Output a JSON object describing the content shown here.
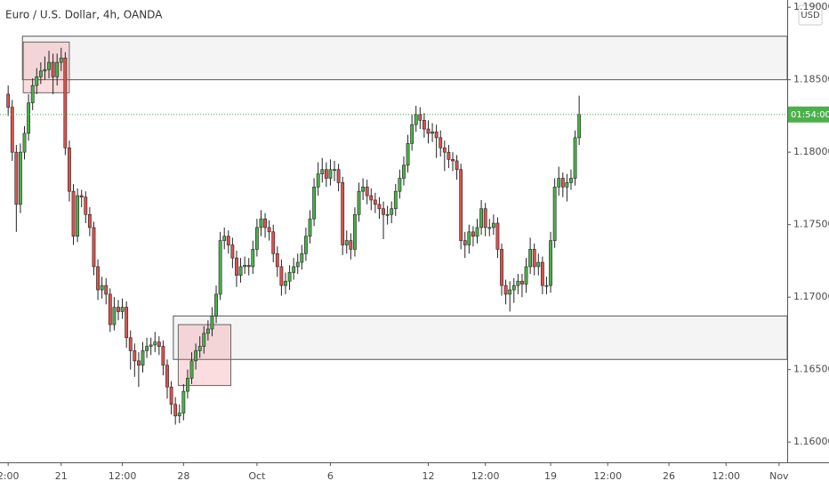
{
  "chart_data": {
    "type": "candlestick",
    "title": "Euro / U.S. Dollar, 4h, OANDA",
    "currency": "USD",
    "countdown": "01:54:00",
    "up_color": "#4cb04c",
    "down_color": "#d9534f",
    "xlim": [
      -2,
      191
    ],
    "ylim": [
      1.1586,
      1.1905
    ],
    "yticks": [
      {
        "value": 1.16,
        "label": "1.16000"
      },
      {
        "value": 1.165,
        "label": "1.16500"
      },
      {
        "value": 1.17,
        "label": "1.17000"
      },
      {
        "value": 1.175,
        "label": "1.17500"
      },
      {
        "value": 1.18,
        "label": "1.18000"
      },
      {
        "value": 1.185,
        "label": "1.18500"
      },
      {
        "value": 1.19,
        "label": "1.19000"
      }
    ],
    "xticks": [
      {
        "value": 0,
        "label": "2:00"
      },
      {
        "value": 13,
        "label": "21"
      },
      {
        "value": 28,
        "label": "12:00"
      },
      {
        "value": 43,
        "label": "28"
      },
      {
        "value": 61,
        "label": "Oct"
      },
      {
        "value": 79,
        "label": "6"
      },
      {
        "value": 103,
        "label": "12"
      },
      {
        "value": 117,
        "label": "12:00"
      },
      {
        "value": 133,
        "label": "19"
      },
      {
        "value": 147,
        "label": "12:00"
      },
      {
        "value": 162,
        "label": "26"
      },
      {
        "value": 176,
        "label": "12:00"
      },
      {
        "value": 189,
        "label": "Nov"
      }
    ],
    "zones": [
      {
        "x": [
          3.5,
          191
        ],
        "y": [
          1.185,
          1.188
        ]
      },
      {
        "x": [
          40.5,
          191
        ],
        "y": [
          1.1657,
          1.1687
        ]
      }
    ],
    "boxes": [
      {
        "x": [
          3.7,
          15
        ],
        "y": [
          1.1841,
          1.1876
        ]
      },
      {
        "x": [
          41.7,
          54.6
        ],
        "y": [
          1.1639,
          1.1681
        ]
      }
    ],
    "open": [
      1.184,
      1.1831,
      1.18,
      1.1764,
      1.18,
      1.1813,
      1.1834,
      1.1846,
      1.1852,
      1.1856,
      1.1857,
      1.1862,
      1.1852,
      1.1862,
      1.1865,
      1.1803,
      1.1773,
      1.1742,
      1.177,
      1.1769,
      1.1757,
      1.1748,
      1.1721,
      1.1705,
      1.1708,
      1.1702,
      1.1681,
      1.1693,
      1.169,
      1.1693,
      1.1672,
      1.1663,
      1.1656,
      1.1653,
      1.1663,
      1.1666,
      1.1667,
      1.1669,
      1.1666,
      1.1653,
      1.1638,
      1.1626,
      1.1618,
      1.162,
      1.1635,
      1.1644,
      1.1656,
      1.1663,
      1.1666,
      1.1675,
      1.1678,
      1.1687,
      1.1702,
      1.1739,
      1.1742,
      1.1736,
      1.1727,
      1.1715,
      1.1721,
      1.1722,
      1.1721,
      1.1733,
      1.1748,
      1.1754,
      1.1748,
      1.1745,
      1.173,
      1.1721,
      1.1708,
      1.1711,
      1.1717,
      1.1721,
      1.1724,
      1.173,
      1.1742,
      1.1754,
      1.1776,
      1.1785,
      1.1788,
      1.1782,
      1.1788,
      1.1788,
      1.1779,
      1.1736,
      1.1739,
      1.1733,
      1.1757,
      1.1773,
      1.1776,
      1.177,
      1.1767,
      1.1764,
      1.1761,
      1.1757,
      1.1757,
      1.1761,
      1.1773,
      1.1782,
      1.1791,
      1.1806,
      1.1819,
      1.1826,
      1.1822,
      1.1816,
      1.1813,
      1.1814,
      1.181,
      1.1803,
      1.18,
      1.1795,
      1.1794,
      1.1788,
      1.1739,
      1.1736,
      1.1745,
      1.1742,
      1.1748,
      1.1761,
      1.1748,
      1.1748,
      1.1751,
      1.1733,
      1.1708,
      1.1702,
      1.1705,
      1.1708,
      1.1711,
      1.1709,
      1.1721,
      1.1733,
      1.1721,
      1.1724,
      1.1708,
      1.1708,
      1.1739,
      1.1776,
      1.1782,
      1.1776,
      1.1779,
      1.1782,
      1.181
    ],
    "high": [
      1.1846,
      1.1836,
      1.1805,
      1.1806,
      1.1818,
      1.184,
      1.1851,
      1.1858,
      1.1862,
      1.1866,
      1.187,
      1.1868,
      1.1868,
      1.1872,
      1.1869,
      1.1808,
      1.1778,
      1.1775,
      1.1774,
      1.1773,
      1.1762,
      1.1752,
      1.1726,
      1.1714,
      1.1713,
      1.1706,
      1.17,
      1.1698,
      1.1699,
      1.1697,
      1.1677,
      1.1668,
      1.1662,
      1.1669,
      1.1672,
      1.1672,
      1.1676,
      1.1673,
      1.167,
      1.1657,
      1.1642,
      1.1631,
      1.1626,
      1.164,
      1.165,
      1.1662,
      1.1668,
      1.1673,
      1.168,
      1.1684,
      1.1693,
      1.1708,
      1.1745,
      1.1748,
      1.1746,
      1.1741,
      1.1732,
      1.1727,
      1.1728,
      1.1727,
      1.1739,
      1.1754,
      1.176,
      1.1758,
      1.1753,
      1.175,
      1.1735,
      1.1726,
      1.1717,
      1.1722,
      1.1727,
      1.173,
      1.1736,
      1.1748,
      1.176,
      1.1782,
      1.1793,
      1.1796,
      1.1793,
      1.1795,
      1.1794,
      1.1792,
      1.1783,
      1.1746,
      1.1744,
      1.1762,
      1.1779,
      1.1782,
      1.1781,
      1.1775,
      1.1772,
      1.1769,
      1.1766,
      1.1763,
      1.1766,
      1.1778,
      1.1788,
      1.1797,
      1.1812,
      1.1826,
      1.1832,
      1.1831,
      1.1827,
      1.1822,
      1.182,
      1.1819,
      1.1815,
      1.1808,
      1.1805,
      1.18,
      1.1798,
      1.1792,
      1.1745,
      1.175,
      1.1749,
      1.1754,
      1.1767,
      1.1765,
      1.1754,
      1.1757,
      1.1755,
      1.1737,
      1.1712,
      1.1711,
      1.1713,
      1.1716,
      1.1716,
      1.1727,
      1.1741,
      1.1737,
      1.173,
      1.1728,
      1.1714,
      1.1745,
      1.1782,
      1.179,
      1.1786,
      1.1785,
      1.1788,
      1.1815,
      1.1839
    ],
    "low": [
      1.1825,
      1.1794,
      1.1745,
      1.1758,
      1.1795,
      1.1808,
      1.1829,
      1.184,
      1.1847,
      1.185,
      1.1851,
      1.184,
      1.1846,
      1.1856,
      1.1798,
      1.1766,
      1.1736,
      1.1738,
      1.1762,
      1.1751,
      1.1742,
      1.1715,
      1.1698,
      1.1699,
      1.1695,
      1.1676,
      1.1677,
      1.1684,
      1.1685,
      1.1665,
      1.165,
      1.1645,
      1.1638,
      1.1648,
      1.1658,
      1.166,
      1.1662,
      1.166,
      1.1646,
      1.163,
      1.1619,
      1.1612,
      1.1613,
      1.1615,
      1.163,
      1.164,
      1.165,
      1.1658,
      1.1661,
      1.167,
      1.1673,
      1.1682,
      1.1698,
      1.1733,
      1.173,
      1.172,
      1.1707,
      1.171,
      1.1716,
      1.1715,
      1.1716,
      1.1728,
      1.1742,
      1.1741,
      1.1739,
      1.1724,
      1.1714,
      1.1701,
      1.1702,
      1.1705,
      1.1712,
      1.1716,
      1.1719,
      1.1725,
      1.1737,
      1.1749,
      1.177,
      1.1779,
      1.1776,
      1.1777,
      1.178,
      1.1773,
      1.1729,
      1.173,
      1.1726,
      1.1728,
      1.1752,
      1.1767,
      1.1764,
      1.176,
      1.1758,
      1.1754,
      1.174,
      1.175,
      1.1751,
      1.1756,
      1.1768,
      1.1777,
      1.1786,
      1.1801,
      1.1814,
      1.1816,
      1.181,
      1.1806,
      1.1807,
      1.1796,
      1.1797,
      1.1787,
      1.1789,
      1.1787,
      1.1781,
      1.1733,
      1.1727,
      1.173,
      1.1735,
      1.1737,
      1.1743,
      1.1742,
      1.1742,
      1.1743,
      1.1727,
      1.1701,
      1.1695,
      1.169,
      1.1696,
      1.1702,
      1.17,
      1.1703,
      1.1716,
      1.1715,
      1.1715,
      1.1702,
      1.1702,
      1.1703,
      1.1734,
      1.177,
      1.1769,
      1.1766,
      1.1774,
      1.1777,
      1.1805
    ],
    "close": [
      1.1831,
      1.18,
      1.1764,
      1.18,
      1.1813,
      1.1834,
      1.1846,
      1.1852,
      1.1856,
      1.1857,
      1.1862,
      1.1852,
      1.1862,
      1.1865,
      1.1803,
      1.1773,
      1.1742,
      1.177,
      1.1769,
      1.1757,
      1.1748,
      1.1721,
      1.1705,
      1.1708,
      1.1702,
      1.1681,
      1.1693,
      1.169,
      1.1693,
      1.1672,
      1.1663,
      1.1656,
      1.1653,
      1.1663,
      1.1666,
      1.1667,
      1.1669,
      1.1666,
      1.1653,
      1.1638,
      1.1626,
      1.1618,
      1.162,
      1.1635,
      1.1644,
      1.1656,
      1.1663,
      1.1666,
      1.1675,
      1.1678,
      1.1687,
      1.1702,
      1.1739,
      1.1742,
      1.1736,
      1.1727,
      1.1715,
      1.1721,
      1.1722,
      1.1721,
      1.1733,
      1.1748,
      1.1754,
      1.1748,
      1.1745,
      1.173,
      1.1721,
      1.1708,
      1.1711,
      1.1717,
      1.1721,
      1.1724,
      1.173,
      1.1742,
      1.1754,
      1.1776,
      1.1785,
      1.1788,
      1.1782,
      1.1788,
      1.1788,
      1.1779,
      1.1736,
      1.1739,
      1.1733,
      1.1757,
      1.1773,
      1.1776,
      1.177,
      1.1767,
      1.1764,
      1.1761,
      1.1757,
      1.1757,
      1.1761,
      1.1773,
      1.1782,
      1.1791,
      1.1806,
      1.1819,
      1.1826,
      1.1822,
      1.1816,
      1.1813,
      1.1814,
      1.181,
      1.1803,
      1.18,
      1.1795,
      1.1794,
      1.1788,
      1.1739,
      1.1736,
      1.1745,
      1.1742,
      1.1748,
      1.1761,
      1.1748,
      1.1748,
      1.1751,
      1.1733,
      1.1708,
      1.1702,
      1.1705,
      1.1708,
      1.1711,
      1.1709,
      1.1721,
      1.1733,
      1.1721,
      1.1724,
      1.1708,
      1.1708,
      1.1739,
      1.1776,
      1.1782,
      1.1776,
      1.1779,
      1.1782,
      1.181,
      1.1826
    ]
  }
}
